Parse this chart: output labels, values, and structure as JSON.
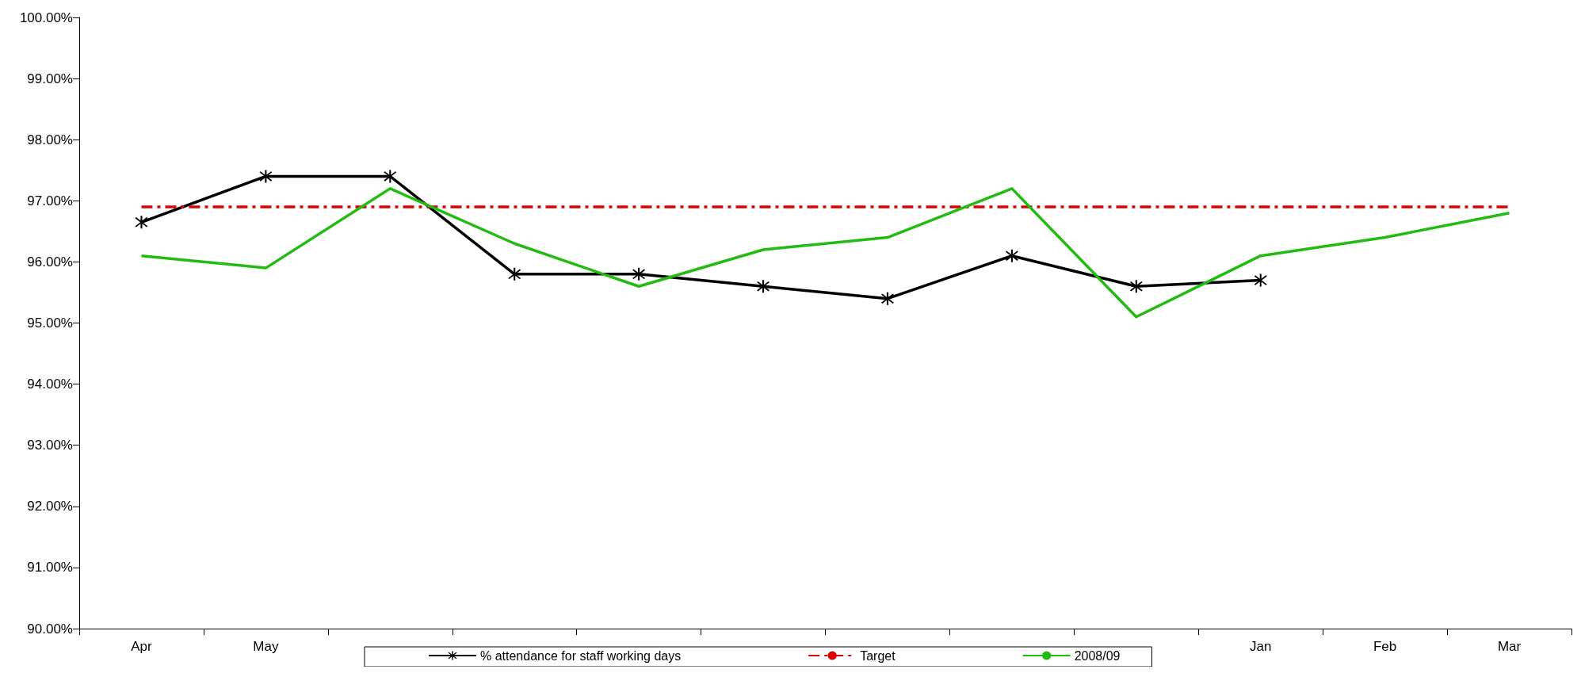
{
  "chart_data": {
    "type": "line",
    "categories": [
      "Apr",
      "May",
      null,
      null,
      null,
      null,
      null,
      null,
      null,
      "Jan",
      "Feb",
      "Mar"
    ],
    "series": [
      {
        "name": "% attendance for staff working days",
        "color": "#000000",
        "marker": "cross",
        "line_style": "solid",
        "values": [
          96.65,
          97.4,
          97.4,
          95.8,
          95.8,
          95.6,
          95.4,
          96.1,
          95.6,
          95.7,
          null,
          null
        ]
      },
      {
        "name": "Target",
        "color": "#dd0000",
        "marker": "none",
        "line_style": "dashed",
        "values": [
          96.9,
          96.9,
          96.9,
          96.9,
          96.9,
          96.9,
          96.9,
          96.9,
          96.9,
          96.9,
          96.9,
          96.9
        ]
      },
      {
        "name": "2008/09",
        "color": "#22bb11",
        "marker": "none",
        "line_style": "solid",
        "values": [
          96.1,
          95.9,
          97.2,
          96.3,
          95.6,
          96.2,
          96.4,
          97.2,
          95.1,
          96.1,
          96.4,
          96.8
        ]
      }
    ],
    "ylim": [
      90,
      100
    ],
    "yticks": [
      {
        "value": 90,
        "label": "90.00%"
      },
      {
        "value": 91,
        "label": "91.00%"
      },
      {
        "value": 92,
        "label": "92.00%"
      },
      {
        "value": 93,
        "label": "93.00%"
      },
      {
        "value": 94,
        "label": "94.00%"
      },
      {
        "value": 95,
        "label": "95.00%"
      },
      {
        "value": 96,
        "label": "96.00%"
      },
      {
        "value": 97,
        "label": "97.00%"
      },
      {
        "value": 98,
        "label": "98.00%"
      },
      {
        "value": 99,
        "label": "99.00%"
      },
      {
        "value": 100,
        "label": "100.00%"
      }
    ],
    "grid": false,
    "legend": "bottom"
  }
}
